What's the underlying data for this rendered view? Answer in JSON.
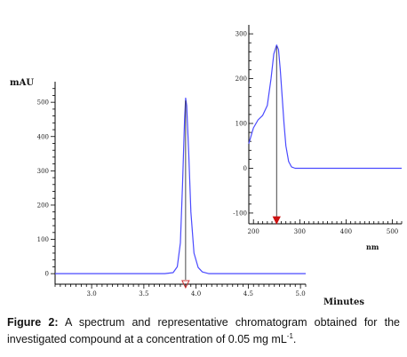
{
  "chart_data": [
    {
      "type": "line",
      "name_role": "chromatogram",
      "ylabel": "mAU",
      "xlabel": "Minutes",
      "xlim": [
        2.65,
        5.05
      ],
      "ylim": [
        -10,
        560
      ],
      "x_ticks": [
        "3.0",
        "3.5",
        "4.0",
        "4.5",
        "5.0"
      ],
      "y_ticks": [
        "0",
        "100",
        "200",
        "300",
        "400",
        "500"
      ],
      "series": [
        {
          "color": "#4a4aff",
          "x": [
            2.65,
            3.7,
            3.78,
            3.82,
            3.85,
            3.87,
            3.89,
            3.9,
            3.91,
            3.93,
            3.95,
            3.98,
            4.02,
            4.06,
            4.12,
            5.05
          ],
          "y": [
            0,
            0,
            3,
            20,
            90,
            260,
            450,
            512,
            490,
            350,
            180,
            60,
            18,
            5,
            0,
            0
          ]
        }
      ],
      "markers": [
        {
          "x": 3.9,
          "shape": "open-triangle-down",
          "color": "#cc3333"
        }
      ]
    },
    {
      "type": "line",
      "name_role": "uv-spectrum",
      "xlabel": "nm",
      "xlim": [
        190,
        520
      ],
      "ylim": [
        -120,
        320
      ],
      "x_ticks": [
        "200",
        "300",
        "400",
        "500"
      ],
      "y_ticks": [
        "-100",
        "0",
        "100",
        "200",
        "300"
      ],
      "series": [
        {
          "color": "#4a4aff",
          "x": [
            190,
            200,
            210,
            220,
            230,
            238,
            244,
            250,
            254,
            258,
            262,
            266,
            270,
            276,
            282,
            290,
            300,
            520
          ],
          "y": [
            55,
            90,
            108,
            118,
            140,
            200,
            255,
            275,
            265,
            220,
            160,
            100,
            50,
            15,
            3,
            0,
            0,
            0
          ]
        }
      ],
      "markers": [
        {
          "x": 250,
          "shape": "filled-triangle-down",
          "color": "#cc1111"
        }
      ]
    }
  ],
  "caption": {
    "figure_label": "Figure 2:",
    "text": " A spectrum and representative chromatogram obtained for the investigated compound at a concentration of 0.05 mg mL",
    "superscript": "-1",
    "end": "."
  }
}
